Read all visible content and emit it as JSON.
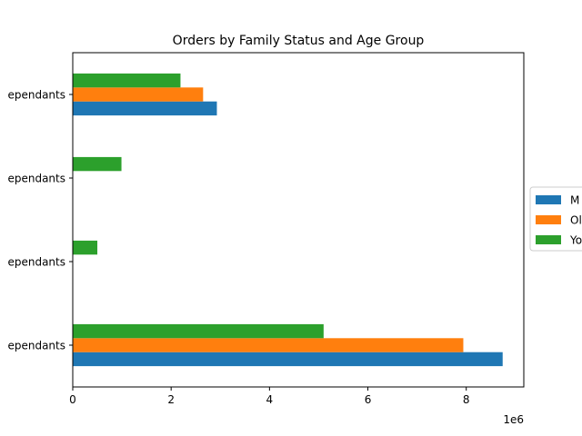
{
  "chart_data": {
    "type": "bar",
    "orientation": "horizontal",
    "title": "Orders by Family Status and Age Group",
    "xlabel": "",
    "ylabel": "",
    "x_offset_label": "1e6",
    "xlim": [
      0,
      9170000
    ],
    "x_ticks": [
      0,
      2000000,
      4000000,
      6000000,
      8000000
    ],
    "x_tick_labels": [
      "0",
      "2",
      "4",
      "6",
      "8"
    ],
    "categories": [
      "Dependants",
      "Dependants",
      "Dependants",
      "Dependants"
    ],
    "category_labels": [
      "ependants",
      "ependants",
      "ependants",
      "ependants"
    ],
    "series": [
      {
        "name": "M",
        "color": "#1f77b4",
        "values": [
          8740000,
          0,
          0,
          2930000
        ]
      },
      {
        "name": "Ol",
        "color": "#ff7f0e",
        "values": [
          7940000,
          0,
          0,
          2650000
        ]
      },
      {
        "name": "Yo",
        "color": "#2ca02c",
        "values": [
          5100000,
          500000,
          990000,
          2190000
        ]
      }
    ],
    "grid": false,
    "legend_position": "right"
  }
}
